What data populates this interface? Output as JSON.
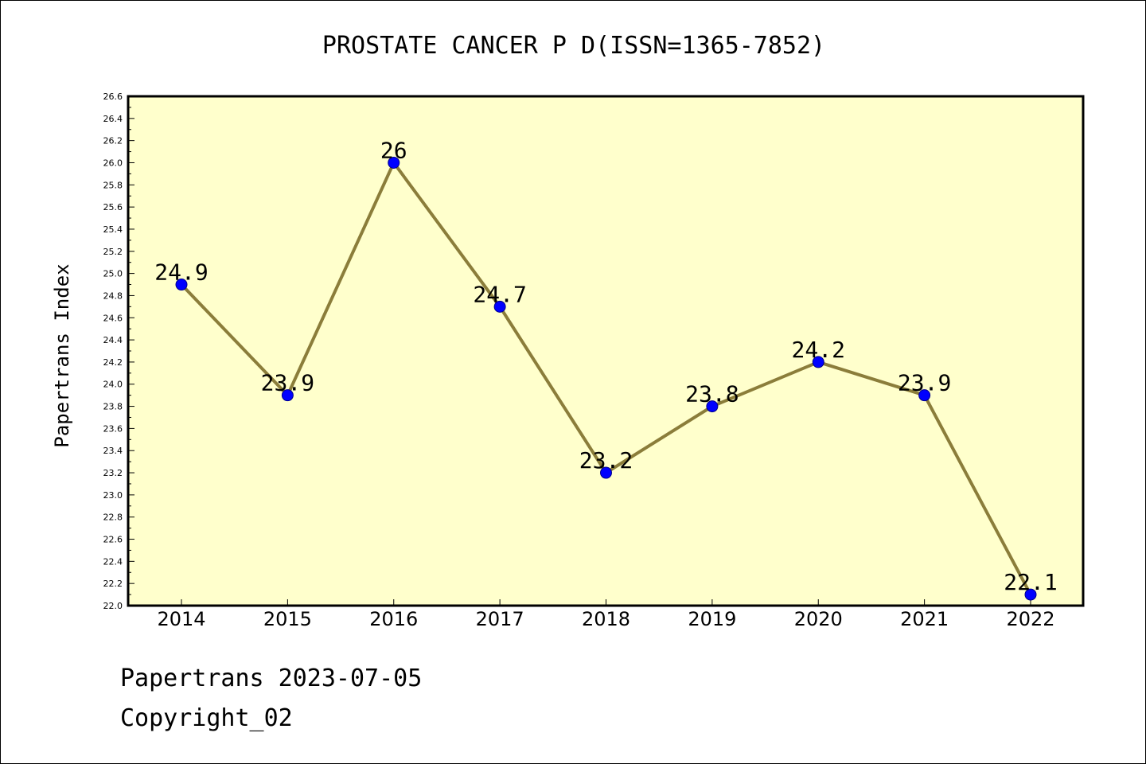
{
  "chart_data": {
    "type": "line",
    "title": "PROSTATE CANCER P D(ISSN=1365-7852)",
    "xlabel": "",
    "ylabel": "Papertrans Index",
    "categories": [
      "2014",
      "2015",
      "2016",
      "2017",
      "2018",
      "2019",
      "2020",
      "2021",
      "2022"
    ],
    "series": [
      {
        "values": [
          24.9,
          23.9,
          26.0,
          24.7,
          23.2,
          23.8,
          24.2,
          23.9,
          22.1
        ]
      }
    ],
    "data_labels": [
      "24.9",
      "23.9",
      "26",
      "24.7",
      "23.2",
      "23.8",
      "24.2",
      "23.9",
      "22.1"
    ],
    "ylim": [
      22.0,
      26.6
    ],
    "y_ticks": [
      "22.0",
      "22.2",
      "22.4",
      "22.6",
      "22.8",
      "23.0",
      "23.2",
      "23.4",
      "23.6",
      "23.8",
      "24.0",
      "24.2",
      "24.4",
      "24.6",
      "24.8",
      "25.0",
      "25.2",
      "25.4",
      "25.6",
      "25.8",
      "26.0",
      "26.2",
      "26.4",
      "26.6"
    ],
    "grid": false,
    "legend": "none",
    "colors": {
      "plot_background": "#ffffcc",
      "line": "#8b7d3a",
      "marker": "#0000ff"
    }
  },
  "footer": {
    "date_line": "Papertrans 2023-07-05",
    "copyright": "Copyright_02"
  }
}
